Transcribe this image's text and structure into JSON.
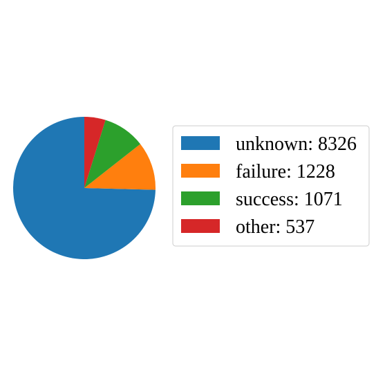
{
  "chart_data": {
    "type": "pie",
    "title": "",
    "start_angle_deg": 90,
    "direction": "counterclockwise",
    "legend_position": "right",
    "slices": [
      {
        "label": "unknown",
        "value": 8326,
        "color": "#1f77b4",
        "legend_text": "unknown: 8326"
      },
      {
        "label": "failure",
        "value": 1228,
        "color": "#ff7f0e",
        "legend_text": "failure: 1228"
      },
      {
        "label": "success",
        "value": 1071,
        "color": "#2ca02c",
        "legend_text": "success: 1071"
      },
      {
        "label": "other",
        "value": 537,
        "color": "#d62728",
        "legend_text": "other: 537"
      }
    ]
  }
}
